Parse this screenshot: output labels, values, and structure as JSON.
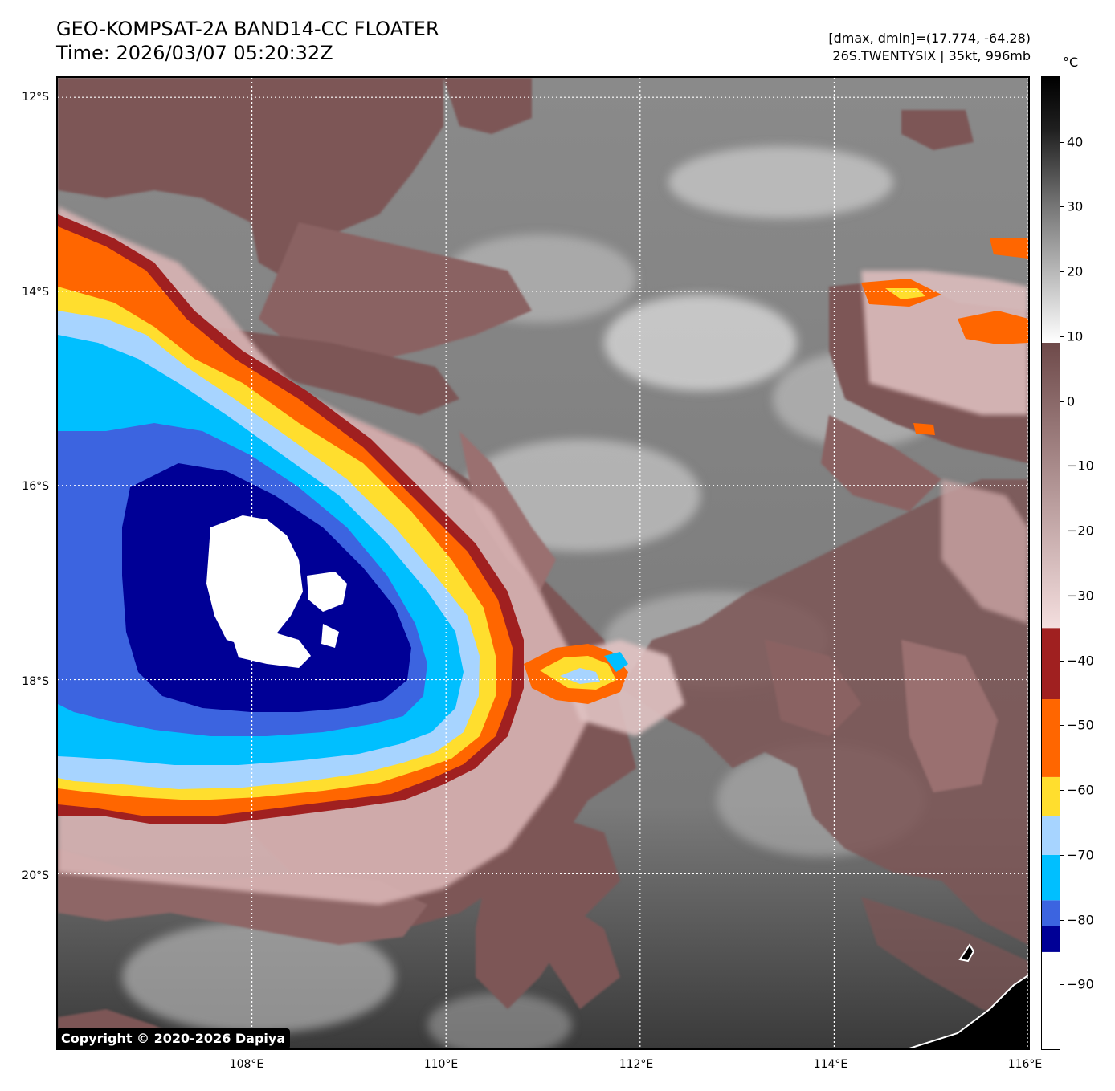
{
  "header": {
    "title_line1": "GEO-KOMPSAT-2A BAND14-CC FLOATER",
    "title_line2": "Time: 2026/03/07 05:20:32Z",
    "meta_line1": "[dmax, dmin]=(17.774, -64.28)",
    "meta_line2": "26S.TWENTYSIX | 35kt, 996mb"
  },
  "map": {
    "lat_labels": [
      "12°S",
      "14°S",
      "16°S",
      "18°S",
      "20°S"
    ],
    "lon_labels": [
      "108°E",
      "110°E",
      "112°E",
      "114°E",
      "116°E"
    ],
    "lat_range": [
      -21.8,
      -11.8
    ],
    "lon_range": [
      106.0,
      116.0
    ],
    "storm_center": {
      "lat": -17.0,
      "lon": 108.3
    }
  },
  "colorbar": {
    "unit": "°C",
    "ticks": [
      "40",
      "30",
      "20",
      "10",
      "0",
      "−10",
      "−20",
      "−30",
      "−40",
      "−50",
      "−60",
      "−70",
      "−80",
      "−90"
    ],
    "range": [
      -100,
      50
    ],
    "segments": [
      {
        "from": -100,
        "to": -85,
        "color": "#ffffff"
      },
      {
        "from": -85,
        "to": -81,
        "color": "#000096"
      },
      {
        "from": -81,
        "to": -77,
        "color": "#3c64e0"
      },
      {
        "from": -77,
        "to": -70,
        "color": "#00bfff"
      },
      {
        "from": -70,
        "to": -64,
        "color": "#a7d4ff"
      },
      {
        "from": -64,
        "to": -58,
        "color": "#ffde2e"
      },
      {
        "from": -58,
        "to": -46,
        "color": "#ff6600"
      },
      {
        "from": -46,
        "to": -35,
        "color": "#a02020"
      },
      {
        "from": -35,
        "to": 9,
        "color": "gradient-pink-brown"
      },
      {
        "from": 9,
        "to": 50,
        "color": "gradient-white-black"
      }
    ]
  },
  "copyright": "Copyright © 2020-2026 Dapiya"
}
